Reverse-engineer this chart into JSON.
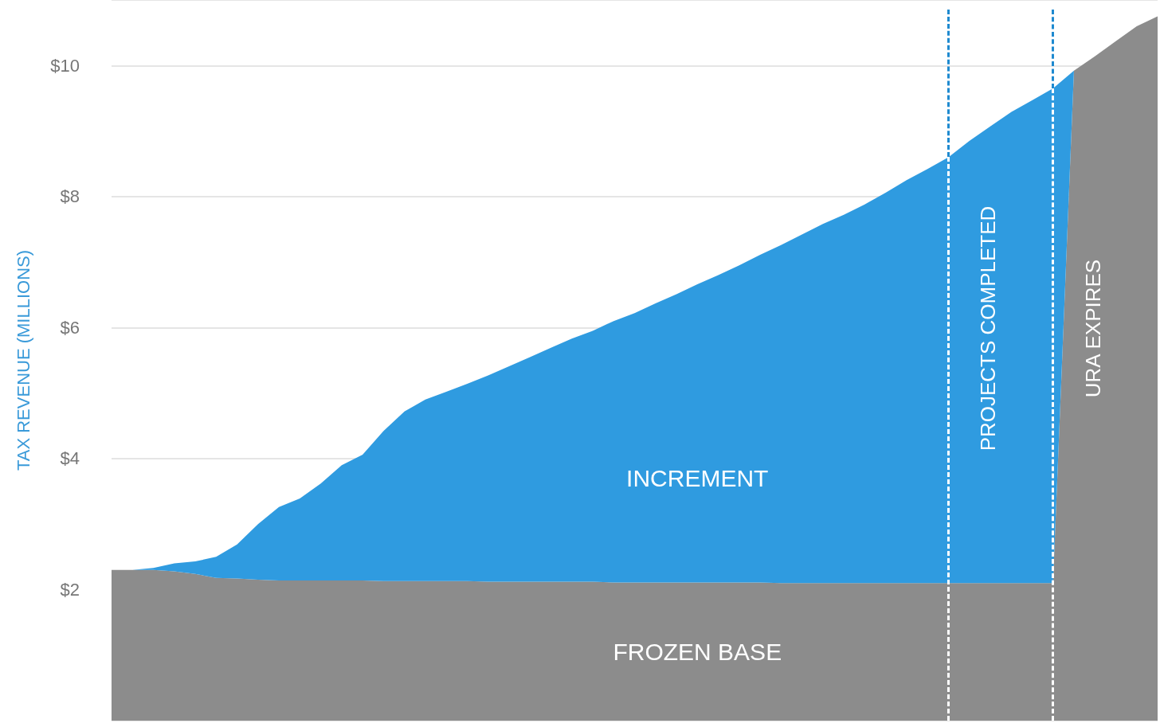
{
  "chart_data": {
    "type": "area",
    "stacked": true,
    "ylabel": "TAX REVENUE (MILLIONS)",
    "categories": [
      null,
      null,
      null,
      null,
      null,
      null,
      null,
      null,
      null,
      null,
      null,
      null,
      null,
      null,
      null,
      null,
      null,
      null,
      null,
      null,
      null,
      null,
      null,
      null,
      null,
      null,
      null,
      null,
      null,
      null,
      null,
      null,
      null,
      null,
      null,
      null,
      null,
      null,
      null,
      null,
      null,
      null,
      null,
      null,
      null,
      null,
      null,
      null,
      null,
      null,
      null
    ],
    "series": [
      {
        "name": "FROZEN BASE",
        "color": "#8c8c8c",
        "values": [
          2.3,
          2.3,
          2.3,
          2.28,
          2.24,
          2.18,
          2.17,
          2.15,
          2.14,
          2.14,
          2.14,
          2.14,
          2.14,
          2.13,
          2.13,
          2.13,
          2.13,
          2.13,
          2.12,
          2.12,
          2.12,
          2.12,
          2.12,
          2.12,
          2.11,
          2.11,
          2.11,
          2.11,
          2.11,
          2.11,
          2.11,
          2.11,
          2.1,
          2.1,
          2.1,
          2.1,
          2.1,
          2.1,
          2.1,
          2.1,
          2.1,
          2.1,
          2.1,
          2.1,
          2.1,
          2.1,
          9.92,
          10.14,
          10.37,
          10.6,
          10.75
        ]
      },
      {
        "name": "INCREMENT",
        "color": "#2f9be0",
        "values": [
          0,
          0,
          0.03,
          0.12,
          0.19,
          0.32,
          0.52,
          0.85,
          1.12,
          1.25,
          1.48,
          1.76,
          1.92,
          2.29,
          2.59,
          2.77,
          2.89,
          3.01,
          3.15,
          3.29,
          3.43,
          3.57,
          3.71,
          3.83,
          3.99,
          4.11,
          4.26,
          4.4,
          4.55,
          4.69,
          4.84,
          5.0,
          5.16,
          5.32,
          5.48,
          5.62,
          5.78,
          5.96,
          6.15,
          6.32,
          6.5,
          6.75,
          6.97,
          7.19,
          7.37,
          7.55,
          0,
          0,
          0,
          0,
          0
        ]
      }
    ],
    "ylim": [
      0,
      11
    ],
    "yticks": [
      {
        "value": 2,
        "label": "$2"
      },
      {
        "value": 4,
        "label": "$4"
      },
      {
        "value": 6,
        "label": "$6"
      },
      {
        "value": 8,
        "label": "$8"
      },
      {
        "value": 10,
        "label": "$10"
      }
    ],
    "grid": "y",
    "legend": false,
    "annotations": [
      "PROJECTS COMPLETED",
      "URA EXPIRES"
    ]
  }
}
